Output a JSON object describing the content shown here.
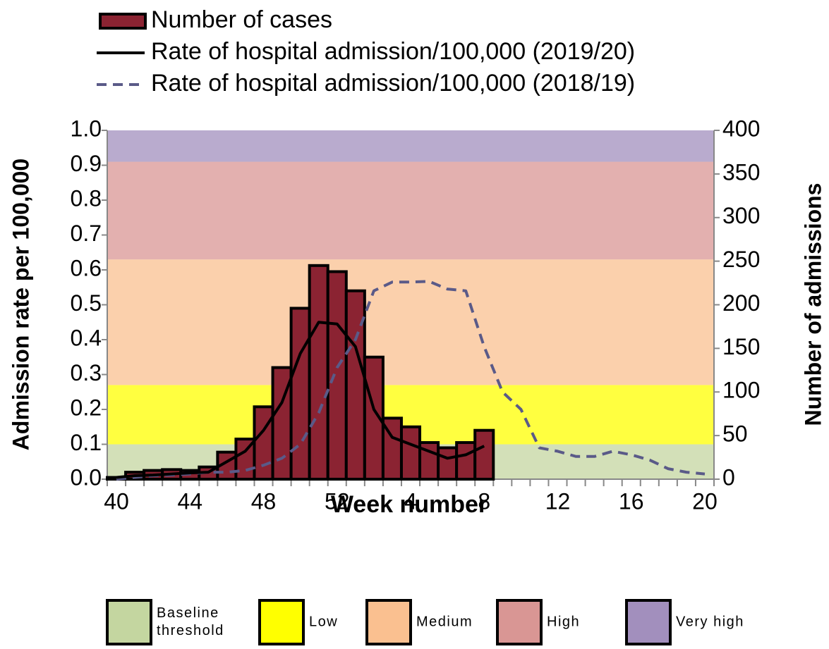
{
  "chart_data": {
    "type": "bar",
    "xlabel": "Week number",
    "ylabel": "Admission rate per 100,000",
    "y2label": "Number of admissions",
    "categories": [
      "40",
      null,
      null,
      null,
      "44",
      null,
      null,
      null,
      "48",
      null,
      null,
      null,
      "52",
      null,
      null,
      null,
      "4",
      null,
      null,
      null,
      "8",
      null,
      null,
      null,
      "12",
      null,
      null,
      null,
      "16",
      null,
      null,
      null,
      "20"
    ],
    "ylim": [
      0,
      1
    ],
    "yticks": [
      {
        "value": 0,
        "label": "0.0"
      },
      0.1,
      0.2,
      0.3,
      0.4,
      0.5,
      0.6,
      0.7,
      0.8,
      0.9,
      {
        "value": 1,
        "label": "1.0"
      }
    ],
    "y2lim": [
      0,
      400
    ],
    "y2ticks": [
      0,
      50,
      100,
      150,
      200,
      250,
      300,
      350,
      400
    ],
    "bands": [
      {
        "name": "Baseline threshold",
        "from": 0,
        "to": 0.1,
        "color": "#c4d6a0"
      },
      {
        "name": "Low",
        "from": 0.1,
        "to": 0.27,
        "color": "#ffff00"
      },
      {
        "name": "Medium",
        "from": 0.27,
        "to": 0.63,
        "color": "#fac090"
      },
      {
        "name": "High",
        "from": 0.63,
        "to": 0.91,
        "color": "#d99694"
      },
      {
        "name": "Very high",
        "from": 0.91,
        "to": 1,
        "color": "#a28fbd"
      }
    ],
    "series": [
      {
        "name": "Number of cases",
        "type": "bar",
        "axis": "y2",
        "color": "#8b2332",
        "values": [
          2,
          8,
          10,
          11,
          10,
          14,
          31,
          46,
          83,
          128,
          196,
          245,
          238,
          216,
          140,
          70,
          60,
          42,
          36,
          42,
          56,
          null,
          null,
          null,
          null,
          null,
          null,
          null,
          null,
          null,
          null,
          null,
          null
        ]
      },
      {
        "name": "Rate of hospital admission/100,000 (2019/20)",
        "type": "line",
        "color": "#000000",
        "dash": false,
        "values": [
          0.005,
          0.01,
          0.012,
          0.015,
          0.018,
          0.02,
          0.05,
          0.08,
          0.14,
          0.22,
          0.36,
          0.45,
          0.445,
          0.38,
          0.2,
          0.12,
          0.1,
          0.08,
          0.06,
          0.07,
          0.095,
          null,
          null,
          null,
          null,
          null,
          null,
          null,
          null,
          null,
          null,
          null,
          null
        ]
      },
      {
        "name": "Rate of hospital admission/100,000 (2018/19)",
        "type": "line",
        "color": "#5a5a88",
        "dash": true,
        "values": [
          0.0,
          0.005,
          0.01,
          0.012,
          0.015,
          0.02,
          0.02,
          0.025,
          0.04,
          0.06,
          0.1,
          0.19,
          0.32,
          0.4,
          0.54,
          0.565,
          0.565,
          0.567,
          0.545,
          0.54,
          0.38,
          0.25,
          0.2,
          0.09,
          0.08,
          0.065,
          0.065,
          0.08,
          0.07,
          0.055,
          0.03,
          0.02,
          0.015
        ]
      }
    ]
  }
}
